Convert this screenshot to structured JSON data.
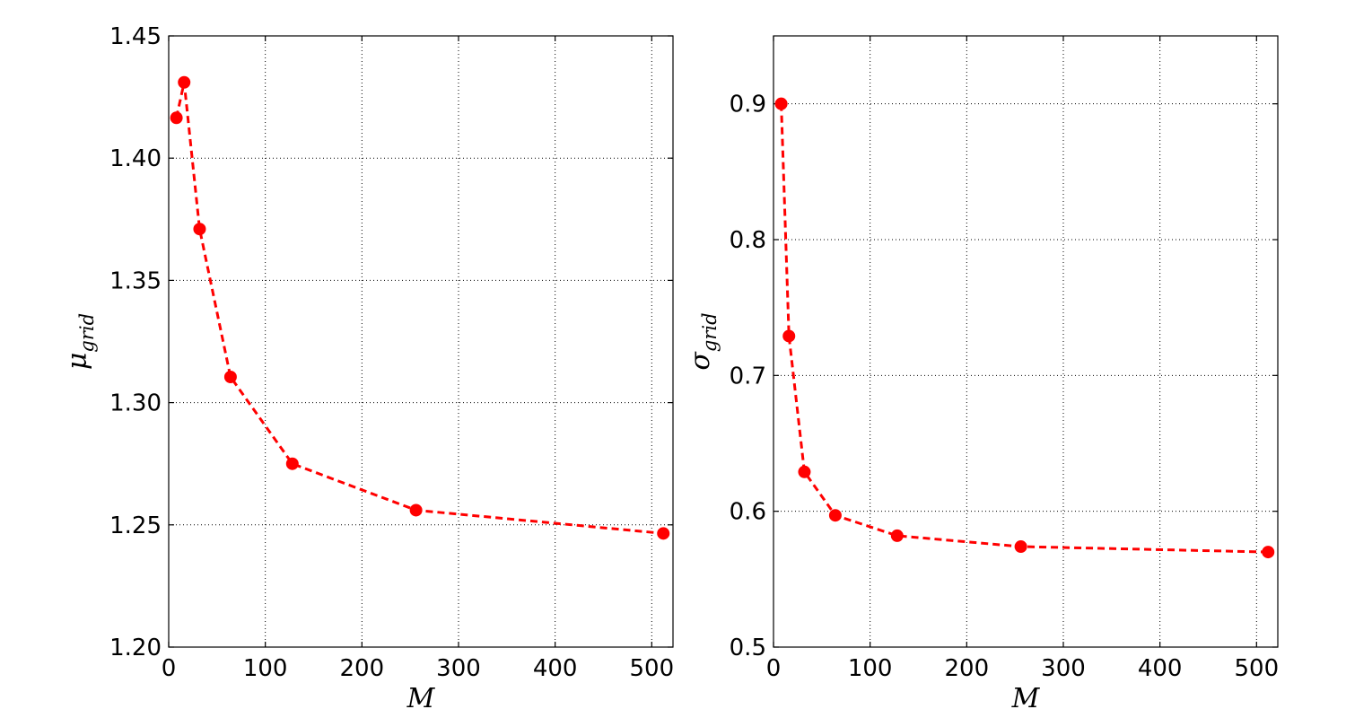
{
  "chart_data": [
    {
      "type": "line",
      "xlabel_main": "M",
      "ylabel_main": "μ",
      "ylabel_sub": "grid",
      "xlim": [
        0,
        522
      ],
      "ylim": [
        1.2,
        1.45
      ],
      "xticks": [
        0,
        100,
        200,
        300,
        400,
        500
      ],
      "xtick_labels": [
        "0",
        "100",
        "200",
        "300",
        "400",
        "500"
      ],
      "yticks": [
        1.2,
        1.25,
        1.3,
        1.35,
        1.4,
        1.45
      ],
      "ytick_labels": [
        "1.20",
        "1.25",
        "1.30",
        "1.35",
        "1.40",
        "1.45"
      ],
      "grid": true,
      "series": [
        {
          "color": "#ff0000",
          "style": "dashed-with-circle-markers",
          "x": [
            8,
            16,
            32,
            64,
            128,
            256,
            512
          ],
          "y": [
            1.4165,
            1.431,
            1.371,
            1.3105,
            1.275,
            1.256,
            1.2465
          ]
        }
      ]
    },
    {
      "type": "line",
      "xlabel_main": "M",
      "ylabel_main": "σ",
      "ylabel_sub": "grid",
      "xlim": [
        0,
        522
      ],
      "ylim": [
        0.5,
        0.95
      ],
      "xticks": [
        0,
        100,
        200,
        300,
        400,
        500
      ],
      "xtick_labels": [
        "0",
        "100",
        "200",
        "300",
        "400",
        "500"
      ],
      "yticks": [
        0.5,
        0.6,
        0.7,
        0.8,
        0.9
      ],
      "ytick_labels": [
        "0.5",
        "0.6",
        "0.7",
        "0.8",
        "0.9"
      ],
      "grid": true,
      "series": [
        {
          "color": "#ff0000",
          "style": "dashed-with-circle-markers",
          "x": [
            8,
            16,
            32,
            64,
            128,
            256,
            512
          ],
          "y": [
            0.9,
            0.729,
            0.629,
            0.597,
            0.582,
            0.574,
            0.57
          ]
        }
      ]
    }
  ]
}
